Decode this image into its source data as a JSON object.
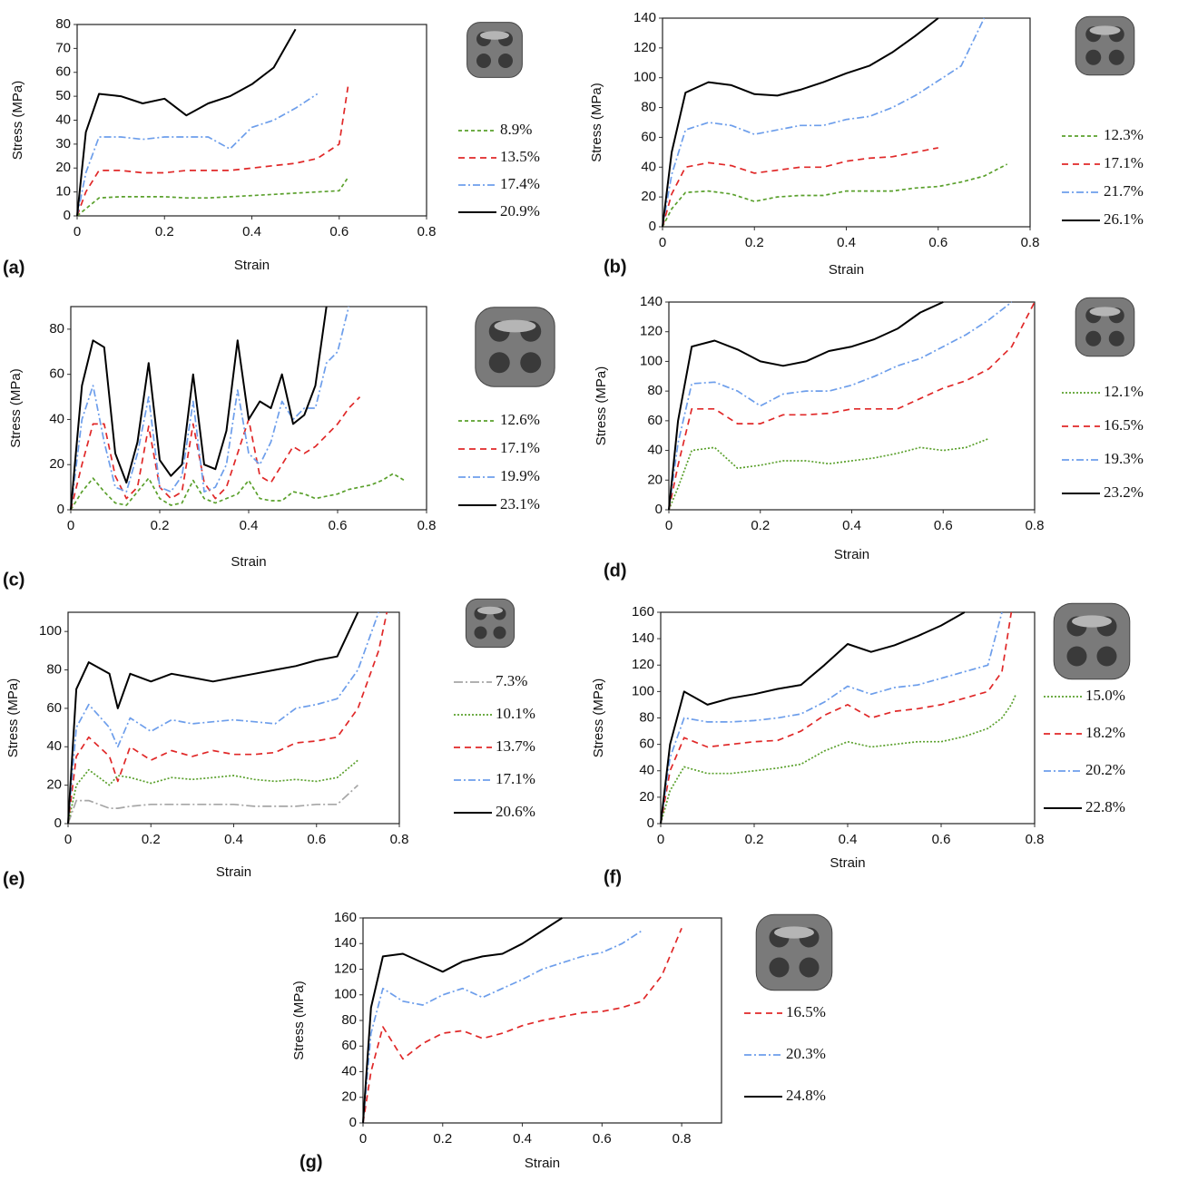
{
  "chart_data": [
    {
      "type": "line",
      "label": "(a)",
      "xlabel": "Strain",
      "ylabel": "Stress (MPa)",
      "x": [
        0,
        0.02,
        0.05,
        0.1,
        0.15,
        0.2,
        0.25,
        0.3,
        0.35,
        0.4,
        0.45,
        0.5,
        0.55,
        0.6,
        0.62
      ],
      "xlim": [
        0,
        0.8
      ],
      "xticks": [
        0,
        0.2,
        0.4,
        0.6,
        0.8
      ],
      "ylim": [
        0,
        80
      ],
      "yticks": [
        0,
        10,
        20,
        30,
        40,
        50,
        60,
        70,
        80
      ],
      "series": [
        {
          "name": "8.9%",
          "color": "#5aa02c",
          "dash": "4,3",
          "values": [
            0,
            3,
            7.5,
            8,
            8,
            8,
            7.5,
            7.5,
            8,
            8.5,
            9,
            9.5,
            10,
            10.5,
            16
          ]
        },
        {
          "name": "13.5%",
          "color": "#e02828",
          "dash": "7,5",
          "values": [
            0,
            10,
            19,
            19,
            18,
            18,
            19,
            19,
            19,
            20,
            21,
            22,
            24,
            30,
            54
          ]
        },
        {
          "name": "17.4%",
          "color": "#6d9eeb",
          "dash": "8,3,2,3",
          "values": [
            0,
            18,
            33,
            33,
            32,
            33,
            33,
            33,
            28,
            37,
            40,
            45,
            51,
            null,
            null
          ]
        },
        {
          "name": "20.9%",
          "color": "#000000",
          "dash": "none",
          "values": [
            0,
            35,
            51,
            50,
            47,
            49,
            42,
            47,
            50,
            55,
            62,
            78,
            null,
            null,
            null
          ]
        }
      ]
    },
    {
      "type": "line",
      "label": "(b)",
      "xlabel": "Strain",
      "ylabel": "Stress (MPa)",
      "x": [
        0,
        0.02,
        0.05,
        0.1,
        0.15,
        0.2,
        0.25,
        0.3,
        0.35,
        0.4,
        0.45,
        0.5,
        0.55,
        0.6,
        0.65,
        0.7,
        0.75
      ],
      "xlim": [
        0,
        0.8
      ],
      "xticks": [
        0,
        0.2,
        0.4,
        0.6,
        0.8
      ],
      "ylim": [
        0,
        140
      ],
      "yticks": [
        0,
        20,
        40,
        60,
        80,
        100,
        120,
        140
      ],
      "series": [
        {
          "name": "12.3%",
          "color": "#5aa02c",
          "dash": "4,3",
          "values": [
            0,
            12,
            23,
            24,
            22,
            17,
            20,
            21,
            21,
            24,
            24,
            24,
            26,
            27,
            30,
            34,
            42
          ]
        },
        {
          "name": "17.1%",
          "color": "#e02828",
          "dash": "7,5",
          "values": [
            0,
            22,
            40,
            43,
            41,
            36,
            38,
            40,
            40,
            44,
            46,
            47,
            50,
            53,
            null,
            null,
            null
          ]
        },
        {
          "name": "21.7%",
          "color": "#6d9eeb",
          "dash": "8,3,2,3",
          "values": [
            0,
            35,
            65,
            70,
            68,
            62,
            65,
            68,
            68,
            72,
            74,
            80,
            88,
            98,
            108,
            140,
            null
          ]
        },
        {
          "name": "26.1%",
          "color": "#000000",
          "dash": "none",
          "values": [
            0,
            50,
            90,
            97,
            95,
            89,
            88,
            92,
            97,
            103,
            108,
            117,
            128,
            140,
            null,
            null,
            null
          ]
        }
      ]
    },
    {
      "type": "line",
      "label": "(c)",
      "xlabel": "Strain",
      "ylabel": "Stress (MPa)",
      "x": [
        0,
        0.025,
        0.05,
        0.075,
        0.1,
        0.125,
        0.15,
        0.175,
        0.2,
        0.225,
        0.25,
        0.275,
        0.3,
        0.325,
        0.35,
        0.375,
        0.4,
        0.425,
        0.45,
        0.475,
        0.5,
        0.525,
        0.55,
        0.575,
        0.6,
        0.625,
        0.65,
        0.675,
        0.7,
        0.725,
        0.75
      ],
      "xlim": [
        0,
        0.8
      ],
      "xticks": [
        0,
        0.2,
        0.4,
        0.6,
        0.8
      ],
      "ylim": [
        0,
        90
      ],
      "yticks": [
        0,
        20,
        40,
        60,
        80
      ],
      "series": [
        {
          "name": "12.6%",
          "color": "#5aa02c",
          "dash": "4,3",
          "values": [
            0,
            8,
            14,
            8,
            3,
            2,
            8,
            14,
            5,
            2,
            3,
            13,
            5,
            3,
            5,
            7,
            13,
            5,
            4,
            4,
            8,
            7,
            5,
            6,
            7,
            9,
            10,
            11,
            13,
            16,
            13
          ]
        },
        {
          "name": "17.1%",
          "color": "#e02828",
          "dash": "7,5",
          "values": [
            0,
            20,
            38,
            38,
            15,
            5,
            10,
            37,
            10,
            5,
            8,
            38,
            12,
            5,
            10,
            25,
            40,
            15,
            12,
            20,
            28,
            25,
            28,
            33,
            38,
            45,
            50,
            null,
            null,
            null,
            null
          ]
        },
        {
          "name": "19.9%",
          "color": "#6d9eeb",
          "dash": "8,3,2,3",
          "values": [
            0,
            40,
            55,
            30,
            10,
            8,
            25,
            50,
            10,
            8,
            15,
            48,
            8,
            10,
            20,
            53,
            25,
            20,
            30,
            48,
            40,
            45,
            45,
            65,
            70,
            90,
            null,
            null,
            null,
            null,
            null
          ]
        },
        {
          "name": "23.1%",
          "color": "#000000",
          "dash": "none",
          "values": [
            0,
            55,
            75,
            72,
            25,
            12,
            30,
            65,
            22,
            15,
            20,
            60,
            20,
            18,
            35,
            75,
            40,
            48,
            45,
            60,
            38,
            42,
            55,
            90,
            null,
            null,
            null,
            null,
            null,
            null,
            null
          ]
        }
      ]
    },
    {
      "type": "line",
      "label": "(d)",
      "xlabel": "Strain",
      "ylabel": "Stress (MPa)",
      "x": [
        0,
        0.02,
        0.05,
        0.1,
        0.15,
        0.2,
        0.25,
        0.3,
        0.35,
        0.4,
        0.45,
        0.5,
        0.55,
        0.6,
        0.65,
        0.7,
        0.75,
        0.8
      ],
      "xlim": [
        0,
        0.8
      ],
      "xticks": [
        0,
        0.2,
        0.4,
        0.6,
        0.8
      ],
      "ylim": [
        0,
        140
      ],
      "yticks": [
        0,
        20,
        40,
        60,
        80,
        100,
        120,
        140
      ],
      "series": [
        {
          "name": "12.1%",
          "color": "#5aa02c",
          "dash": "2,2",
          "values": [
            0,
            15,
            40,
            42,
            28,
            30,
            33,
            33,
            31,
            33,
            35,
            38,
            42,
            40,
            42,
            48,
            null,
            null
          ]
        },
        {
          "name": "16.5%",
          "color": "#e02828",
          "dash": "7,5",
          "values": [
            0,
            30,
            68,
            68,
            58,
            58,
            64,
            64,
            65,
            68,
            68,
            68,
            75,
            82,
            87,
            95,
            110,
            140
          ]
        },
        {
          "name": "19.3%",
          "color": "#6d9eeb",
          "dash": "8,3,2,3",
          "values": [
            0,
            45,
            85,
            86,
            80,
            70,
            78,
            80,
            80,
            84,
            90,
            97,
            102,
            110,
            118,
            128,
            140,
            null
          ]
        },
        {
          "name": "23.2%",
          "color": "#000000",
          "dash": "none",
          "values": [
            0,
            60,
            110,
            114,
            108,
            100,
            97,
            100,
            107,
            110,
            115,
            122,
            133,
            140,
            null,
            null,
            null,
            null
          ]
        }
      ]
    },
    {
      "type": "line",
      "label": "(e)",
      "xlabel": "Strain",
      "ylabel": "Stress (MPa)",
      "x": [
        0,
        0.02,
        0.05,
        0.1,
        0.12,
        0.15,
        0.2,
        0.25,
        0.3,
        0.35,
        0.4,
        0.45,
        0.5,
        0.55,
        0.6,
        0.65,
        0.7,
        0.75,
        0.77
      ],
      "xlim": [
        0,
        0.8
      ],
      "xticks": [
        0,
        0.2,
        0.4,
        0.6,
        0.8
      ],
      "ylim": [
        0,
        110
      ],
      "yticks": [
        0,
        20,
        40,
        60,
        80,
        100
      ],
      "series": [
        {
          "name": "7.3%",
          "color": "#a6a6a6",
          "dash": "10,3,2,3",
          "values": [
            0,
            12,
            12,
            8,
            8,
            9,
            10,
            10,
            10,
            10,
            10,
            9,
            9,
            9,
            10,
            10,
            20,
            null,
            null
          ]
        },
        {
          "name": "10.1%",
          "color": "#5aa02c",
          "dash": "2,2",
          "values": [
            0,
            20,
            28,
            20,
            25,
            24,
            21,
            24,
            23,
            24,
            25,
            23,
            22,
            23,
            22,
            24,
            33,
            null,
            null
          ]
        },
        {
          "name": "13.7%",
          "color": "#e02828",
          "dash": "7,5",
          "values": [
            0,
            35,
            45,
            35,
            22,
            40,
            33,
            38,
            35,
            38,
            36,
            36,
            37,
            42,
            43,
            45,
            60,
            90,
            110
          ]
        },
        {
          "name": "17.1%",
          "color": "#6d9eeb",
          "dash": "8,3,2,3",
          "values": [
            0,
            50,
            62,
            50,
            40,
            55,
            48,
            54,
            52,
            53,
            54,
            53,
            52,
            60,
            62,
            65,
            80,
            110,
            null
          ]
        },
        {
          "name": "20.6%",
          "color": "#000000",
          "dash": "none",
          "values": [
            0,
            70,
            84,
            78,
            60,
            78,
            74,
            78,
            76,
            74,
            76,
            78,
            80,
            82,
            85,
            87,
            110,
            null,
            null
          ]
        }
      ]
    },
    {
      "type": "line",
      "label": "(f)",
      "xlabel": "Strain",
      "ylabel": "Stress (MPa)",
      "x": [
        0,
        0.02,
        0.05,
        0.1,
        0.15,
        0.2,
        0.25,
        0.3,
        0.35,
        0.4,
        0.45,
        0.5,
        0.55,
        0.6,
        0.65,
        0.7,
        0.73,
        0.75,
        0.76
      ],
      "xlim": [
        0,
        0.8
      ],
      "xticks": [
        0,
        0.2,
        0.4,
        0.6,
        0.8
      ],
      "ylim": [
        0,
        160
      ],
      "yticks": [
        0,
        20,
        40,
        60,
        80,
        100,
        120,
        140,
        160
      ],
      "series": [
        {
          "name": "15.0%",
          "color": "#5aa02c",
          "dash": "2,2",
          "values": [
            0,
            25,
            43,
            38,
            38,
            40,
            42,
            45,
            55,
            62,
            58,
            60,
            62,
            62,
            66,
            72,
            80,
            90,
            98
          ]
        },
        {
          "name": "18.2%",
          "color": "#e02828",
          "dash": "7,5",
          "values": [
            0,
            40,
            65,
            58,
            60,
            62,
            63,
            70,
            82,
            90,
            80,
            85,
            87,
            90,
            95,
            100,
            115,
            160,
            null
          ]
        },
        {
          "name": "20.2%",
          "color": "#6d9eeb",
          "dash": "8,3,2,3",
          "values": [
            0,
            50,
            80,
            77,
            77,
            78,
            80,
            83,
            92,
            104,
            98,
            103,
            105,
            110,
            115,
            120,
            160,
            null,
            null
          ]
        },
        {
          "name": "22.8%",
          "color": "#000000",
          "dash": "none",
          "values": [
            0,
            60,
            100,
            90,
            95,
            98,
            102,
            105,
            120,
            136,
            130,
            135,
            142,
            150,
            160,
            null,
            null,
            null,
            null
          ]
        }
      ]
    },
    {
      "type": "line",
      "label": "(g)",
      "xlabel": "Strain",
      "ylabel": "Stress (MPa)",
      "x": [
        0,
        0.02,
        0.05,
        0.1,
        0.15,
        0.2,
        0.25,
        0.3,
        0.35,
        0.4,
        0.45,
        0.5,
        0.55,
        0.6,
        0.65,
        0.7,
        0.75,
        0.8
      ],
      "xlim": [
        0,
        0.9
      ],
      "xticks": [
        0,
        0.2,
        0.4,
        0.6,
        0.8
      ],
      "ylim": [
        0,
        160
      ],
      "yticks": [
        0,
        20,
        40,
        60,
        80,
        100,
        120,
        140,
        160
      ],
      "series": [
        {
          "name": "16.5%",
          "color": "#e02828",
          "dash": "7,5",
          "values": [
            0,
            40,
            75,
            50,
            62,
            70,
            72,
            66,
            70,
            76,
            80,
            83,
            86,
            87,
            90,
            95,
            115,
            152
          ]
        },
        {
          "name": "20.3%",
          "color": "#6d9eeb",
          "dash": "8,3,2,3",
          "values": [
            0,
            70,
            105,
            95,
            92,
            100,
            105,
            98,
            105,
            112,
            120,
            125,
            130,
            133,
            140,
            150,
            null,
            null
          ]
        },
        {
          "name": "24.8%",
          "color": "#000000",
          "dash": "none",
          "values": [
            0,
            90,
            130,
            132,
            125,
            118,
            126,
            130,
            132,
            140,
            150,
            160,
            null,
            null,
            null,
            null,
            null,
            null
          ]
        }
      ]
    }
  ]
}
